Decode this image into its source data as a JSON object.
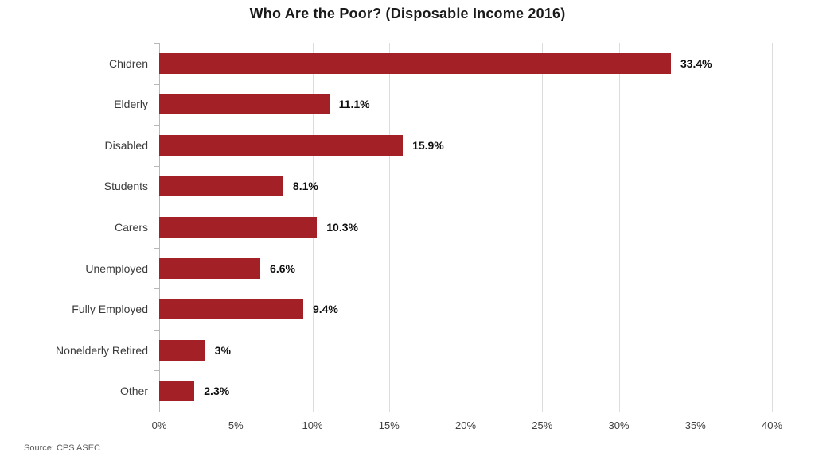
{
  "title": "Who Are the Poor? (Disposable Income 2016)",
  "source": "Source: CPS ASEC",
  "chart_data": {
    "type": "bar",
    "orientation": "horizontal",
    "title": "Who Are the Poor? (Disposable Income 2016)",
    "categories": [
      "Chidren",
      "Elderly",
      "Disabled",
      "Students",
      "Carers",
      "Unemployed",
      "Fully Employed",
      "Nonelderly Retired",
      "Other"
    ],
    "values": [
      33.4,
      11.1,
      15.9,
      8.1,
      10.3,
      6.6,
      9.4,
      3,
      2.3
    ],
    "value_labels": [
      "33.4%",
      "11.1%",
      "15.9%",
      "8.1%",
      "10.3%",
      "6.6%",
      "9.4%",
      "3%",
      "2.3%"
    ],
    "xlabel": "",
    "ylabel": "",
    "xlim": [
      0,
      40
    ],
    "ticks": [
      0,
      5,
      10,
      15,
      20,
      25,
      30,
      35,
      40
    ],
    "tick_labels": [
      "0%",
      "5%",
      "10%",
      "15%",
      "20%",
      "25%",
      "30%",
      "35%",
      "40%"
    ],
    "bar_color": "#a32026",
    "grid": true,
    "legend": false
  }
}
